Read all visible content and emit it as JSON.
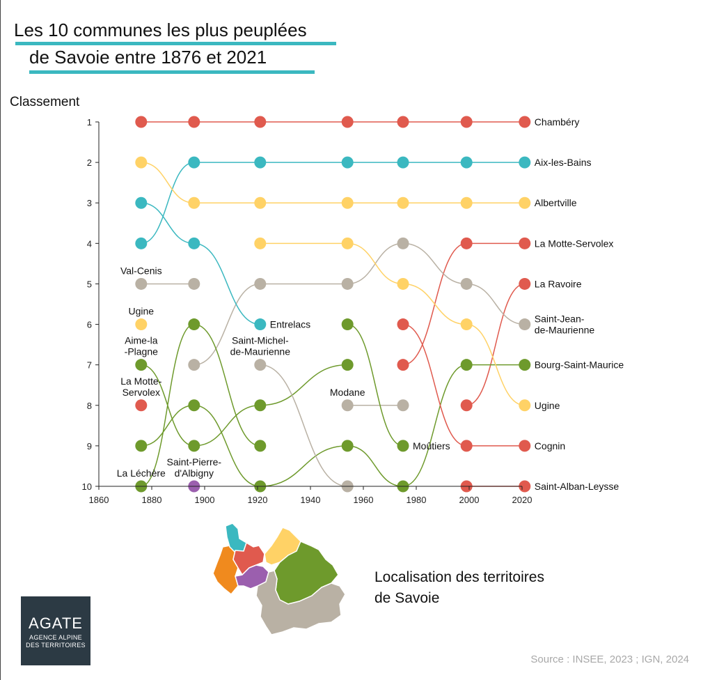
{
  "title_line1": "Les 10 communes les plus peuplées",
  "title_line2": "de Savoie entre 1876 et 2021",
  "map_title_line1": "Localisation des territoires",
  "map_title_line2": "de Savoie",
  "source": "Source : INSEE, 2023 ; IGN, 2024",
  "logo": {
    "name": "AGATE",
    "line1": "AGENCE ALPINE",
    "line2": "DES TERRITOIRES"
  },
  "colors": {
    "red": "#e05a4e",
    "teal": "#3bb8c0",
    "yellow": "#ffd266",
    "gray": "#b9b1a4",
    "green": "#6e9a2c",
    "purple": "#9b5fae",
    "orange": "#f08a1e",
    "title_underline": "#3bb8c0"
  },
  "chart_data": {
    "type": "line",
    "subtype": "bump",
    "title": "Les 10 communes les plus peuplées de Savoie entre 1876 et 2021",
    "ylabel": "Classement",
    "xlim": [
      1860,
      2020
    ],
    "ylim": [
      1,
      10
    ],
    "y_reversed": true,
    "x_ticks": [
      1860,
      1880,
      1900,
      1920,
      1940,
      1960,
      1980,
      2000,
      2020
    ],
    "y_ticks": [
      1,
      2,
      3,
      4,
      5,
      6,
      7,
      8,
      9,
      10
    ],
    "years": [
      1876,
      1896,
      1921,
      1954,
      1975,
      1999,
      2021
    ],
    "grid": false,
    "series": [
      {
        "name": "Chambéry",
        "color": "red",
        "label_at": "end",
        "points": [
          [
            1876,
            1
          ],
          [
            1896,
            1
          ],
          [
            1921,
            1
          ],
          [
            1954,
            1
          ],
          [
            1975,
            1
          ],
          [
            1999,
            1
          ],
          [
            2021,
            1
          ]
        ]
      },
      {
        "name": "Aix-les-Bains",
        "color": "teal",
        "label_at": "end",
        "points": [
          [
            1876,
            4
          ],
          [
            1896,
            2
          ],
          [
            1921,
            2
          ],
          [
            1954,
            2
          ],
          [
            1975,
            2
          ],
          [
            1999,
            2
          ],
          [
            2021,
            2
          ]
        ]
      },
      {
        "name": "Albertville",
        "color": "yellow",
        "label_at": "end",
        "points": [
          [
            1876,
            2
          ],
          [
            1896,
            3
          ],
          [
            1921,
            3
          ],
          [
            1954,
            3
          ],
          [
            1975,
            3
          ],
          [
            1999,
            3
          ],
          [
            2021,
            3
          ]
        ]
      },
      {
        "name": "La Motte-Servolex",
        "color": "red",
        "label_at": "end",
        "points": [
          [
            1975,
            7
          ],
          [
            1999,
            4
          ],
          [
            2021,
            4
          ]
        ]
      },
      {
        "name": "La Ravoire",
        "color": "red",
        "label_at": "end",
        "points": [
          [
            1999,
            8
          ],
          [
            2021,
            5
          ]
        ]
      },
      {
        "name": "Saint-Jean-\nde-Maurienne",
        "color": "gray",
        "label_at": "end",
        "points": [
          [
            1896,
            7
          ],
          [
            1921,
            5
          ],
          [
            1954,
            5
          ],
          [
            1975,
            4
          ],
          [
            1999,
            5
          ],
          [
            2021,
            6
          ]
        ]
      },
      {
        "name": "Bourg-Saint-Maurice",
        "color": "green",
        "label_at": "end",
        "points": [
          [
            1876,
            9
          ],
          [
            1896,
            8
          ],
          [
            1921,
            10
          ],
          [
            1954,
            9
          ],
          [
            1975,
            10
          ],
          [
            1999,
            7
          ],
          [
            2021,
            7
          ]
        ]
      },
      {
        "name": "Ugine",
        "color": "yellow",
        "label_at": "end",
        "points": [
          [
            1921,
            4
          ],
          [
            1954,
            4
          ],
          [
            1975,
            5
          ],
          [
            1999,
            6
          ],
          [
            2021,
            8
          ]
        ]
      },
      {
        "name": "Cognin",
        "color": "red",
        "label_at": "end",
        "points": [
          [
            1975,
            6
          ],
          [
            1999,
            9
          ],
          [
            2021,
            9
          ]
        ]
      },
      {
        "name": "Saint-Alban-Leysse",
        "color": "red",
        "label_at": "end",
        "points": [
          [
            1999,
            10
          ],
          [
            2021,
            10
          ]
        ]
      },
      {
        "name": "Entrelacs",
        "color": "teal",
        "label_at": "last",
        "points": [
          [
            1876,
            3
          ],
          [
            1896,
            4
          ],
          [
            1921,
            6
          ]
        ]
      },
      {
        "name": "Val-Cenis",
        "color": "gray",
        "label_at": "above",
        "points": [
          [
            1876,
            5
          ],
          [
            1896,
            5
          ]
        ]
      },
      {
        "name": "Ugine",
        "color": "yellow",
        "label_at": "above",
        "points": [
          [
            1876,
            6
          ]
        ]
      },
      {
        "name": "La Motte-\nServolex",
        "color": "red",
        "label_at": "above",
        "points": [
          [
            1876,
            8
          ]
        ]
      },
      {
        "name": "Aime-la\n-Plagne",
        "color": "green",
        "label_at": "above",
        "points": [
          [
            1876,
            7
          ],
          [
            1896,
            9
          ],
          [
            1921,
            8
          ],
          [
            1954,
            7
          ]
        ]
      },
      {
        "name": "Saint-Pierre-\nd'Albigny",
        "color": "purple",
        "label_at": "above",
        "points": [
          [
            1896,
            10
          ]
        ]
      },
      {
        "name": "La Léchère",
        "color": "green",
        "label_at": "above",
        "points": [
          [
            1876,
            10
          ],
          [
            1896,
            6
          ],
          [
            1921,
            9
          ]
        ]
      },
      {
        "name": "Saint-Michel-\nde-Maurienne",
        "color": "gray",
        "label_at": "above",
        "points": [
          [
            1921,
            7
          ],
          [
            1954,
            10
          ]
        ]
      },
      {
        "name": "Modane",
        "color": "gray",
        "label_at": "above",
        "points": [
          [
            1954,
            8
          ],
          [
            1975,
            8
          ]
        ]
      },
      {
        "name": "Moûtiers",
        "color": "green",
        "label_at": "right",
        "points": [
          [
            1954,
            6
          ],
          [
            1975,
            9
          ]
        ]
      }
    ]
  }
}
